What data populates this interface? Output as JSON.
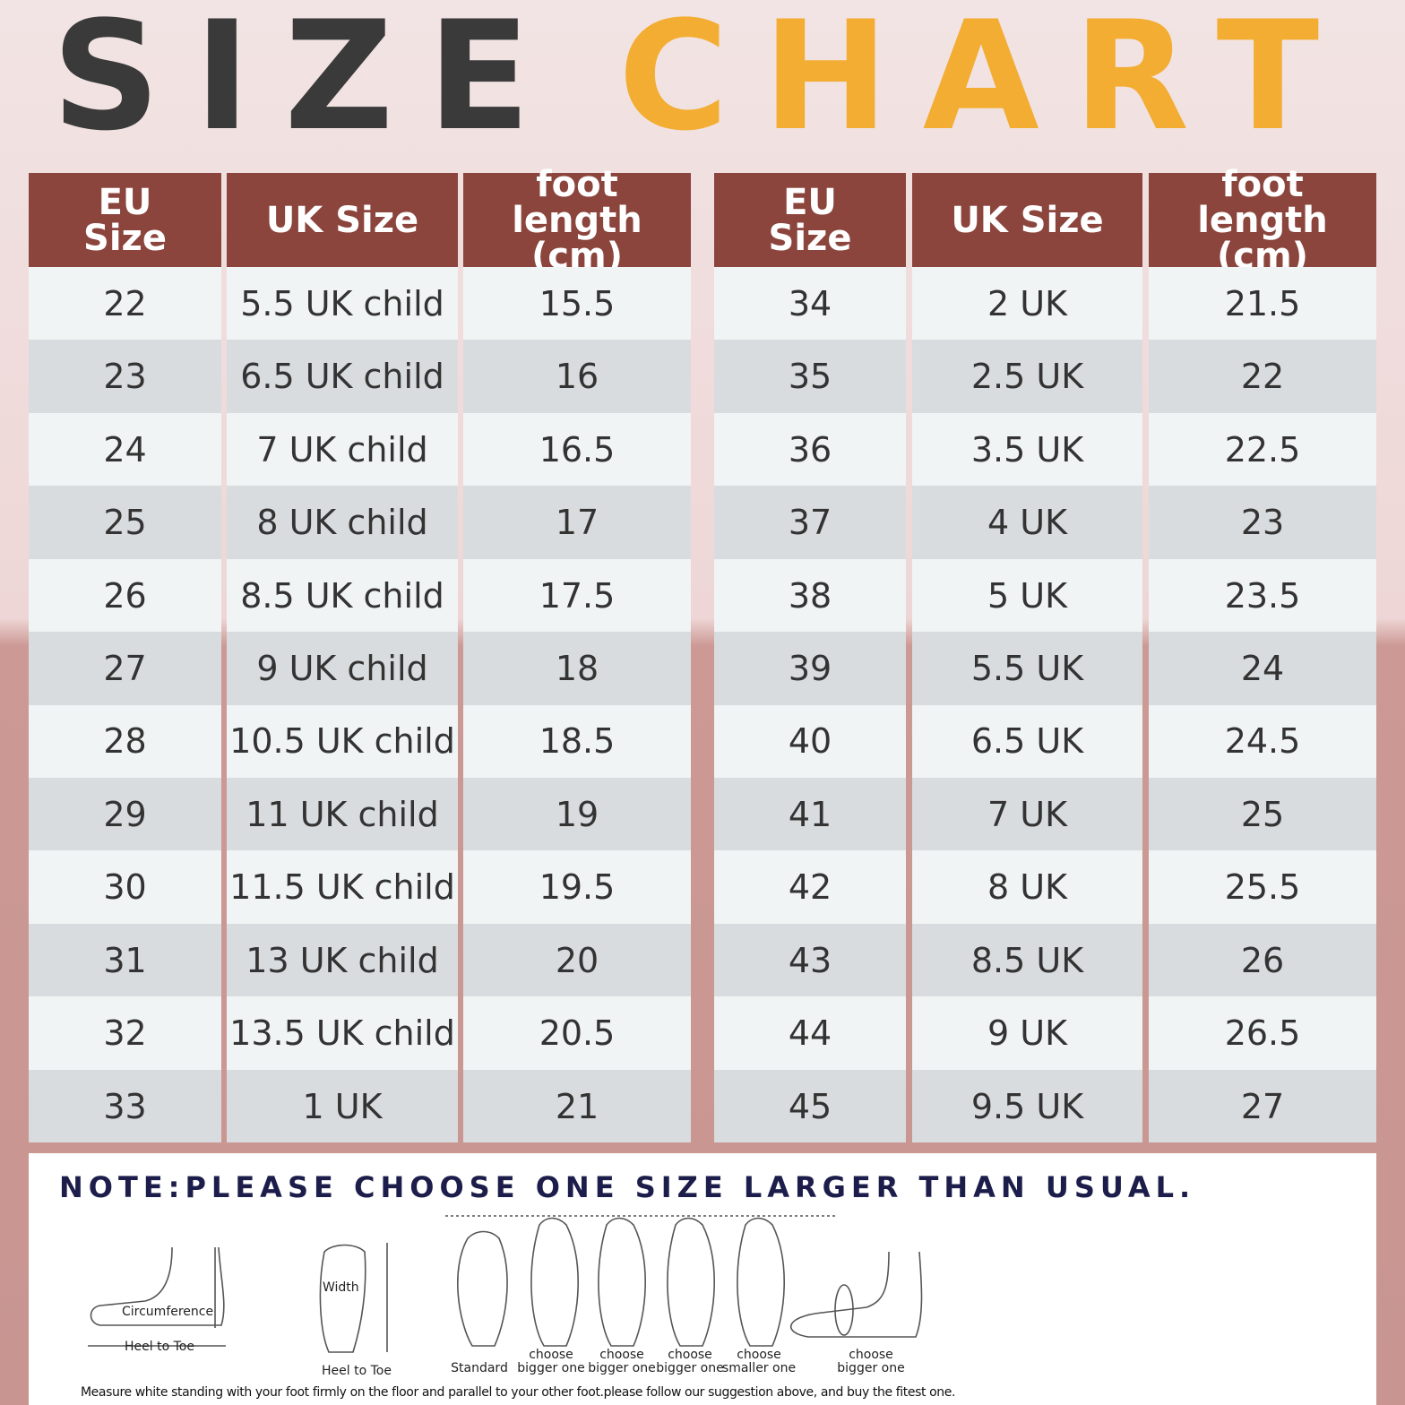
{
  "title": {
    "word1": "SIZE",
    "word2": "CHART"
  },
  "tables": [
    {
      "headers": [
        "EU Size",
        "UK Size",
        "foot length (cm)"
      ],
      "rows": [
        [
          22,
          "5.5 UK child",
          15.5
        ],
        [
          23,
          "6.5 UK child",
          16
        ],
        [
          24,
          "7 UK child",
          16.5
        ],
        [
          25,
          "8 UK child",
          17
        ],
        [
          26,
          "8.5 UK child",
          17.5
        ],
        [
          27,
          "9 UK child",
          18
        ],
        [
          28,
          "10.5 UK child",
          18.5
        ],
        [
          29,
          "11 UK child",
          19
        ],
        [
          30,
          "11.5 UK child",
          19.5
        ],
        [
          31,
          "13 UK child",
          20
        ],
        [
          32,
          "13.5 UK child",
          20.5
        ],
        [
          33,
          "1 UK",
          21
        ]
      ]
    },
    {
      "headers": [
        "EU Size",
        "UK Size",
        "foot length (cm)"
      ],
      "rows": [
        [
          34,
          "2 UK",
          21.5
        ],
        [
          35,
          "2.5 UK",
          22
        ],
        [
          36,
          "3.5 UK",
          22.5
        ],
        [
          37,
          "4 UK",
          23
        ],
        [
          38,
          "5 UK",
          23.5
        ],
        [
          39,
          "5.5 UK",
          24
        ],
        [
          40,
          "6.5 UK",
          24.5
        ],
        [
          41,
          "7 UK",
          25
        ],
        [
          42,
          "8 UK",
          25.5
        ],
        [
          43,
          "8.5 UK",
          26
        ],
        [
          44,
          "9 UK",
          26.5
        ],
        [
          45,
          "9.5 UK",
          27
        ]
      ]
    }
  ],
  "note": "NOTE:PLEASE CHOOSE ONE SIZE LARGER THAN USUAL.",
  "diagram": {
    "circumference": "Circumference",
    "heel_to_toe_1": "Heel to Toe",
    "width": "Width",
    "heel_to_toe_2": "Heel to Toe",
    "captions": [
      "Standard",
      "choose bigger one",
      "choose bigger one",
      "choose bigger one",
      "choose smaller one",
      "choose bigger one"
    ]
  },
  "footer": "Measure white standing with your foot firmly on the floor and parallel to your other foot.please follow our suggestion above, and buy the fitest one."
}
